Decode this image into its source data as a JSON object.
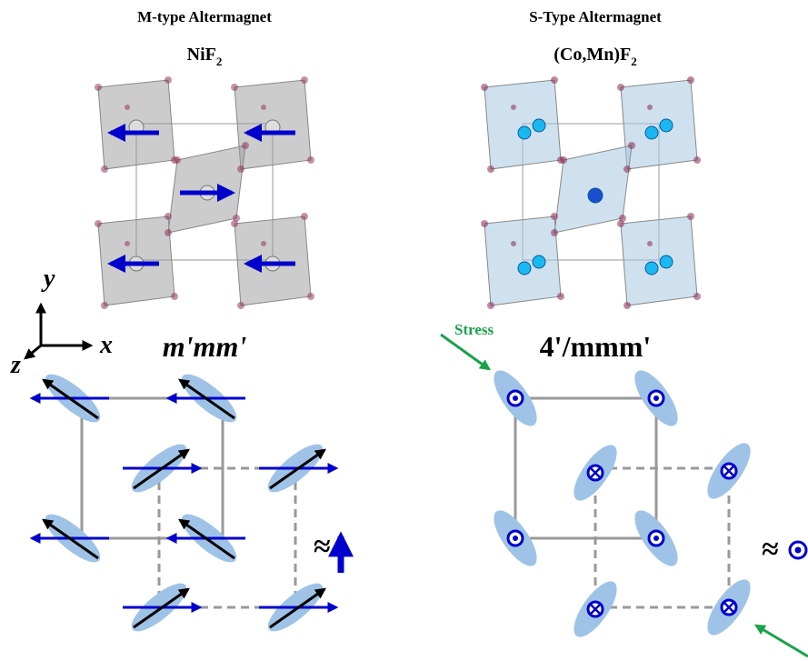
{
  "left": {
    "title": "M-type Altermagnet",
    "formula": {
      "main": "NiF",
      "sub": "2"
    },
    "group": "m'mm'",
    "approx": "≈"
  },
  "right": {
    "title": "S-Type Altermagnet",
    "formula": {
      "main": "(Co,Mn)F",
      "sub": "2"
    },
    "group": "4'/mmm'",
    "approx": "≈",
    "stress": "Stress"
  },
  "axes": {
    "y": "y",
    "x": "x",
    "z": "z"
  }
}
